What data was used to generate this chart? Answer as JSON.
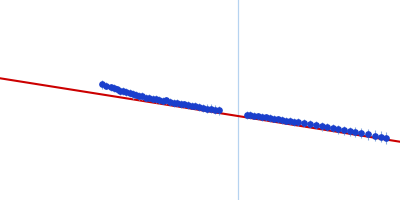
{
  "bg_color": "#ffffff",
  "line_color": "#cc0000",
  "dot_color": "#1a3fcc",
  "errorbar_color": "#88aadd",
  "vline_color": "#aaccee",
  "figsize": [
    4.0,
    2.0
  ],
  "dpi": 100,
  "xlim": [
    0.0,
    1.0
  ],
  "ylim": [
    0.0,
    1.0
  ],
  "line_x0": -0.02,
  "line_y0": 0.615,
  "line_x1": 1.02,
  "line_y1": 0.285,
  "vline_x": 0.595,
  "scatter_noise_seed": 42,
  "data_points": [
    [
      0.255,
      0.578,
      0.022
    ],
    [
      0.265,
      0.572,
      0.018
    ],
    [
      0.278,
      0.563,
      0.018
    ],
    [
      0.285,
      0.56,
      0.019
    ],
    [
      0.292,
      0.554,
      0.018
    ],
    [
      0.3,
      0.547,
      0.02
    ],
    [
      0.308,
      0.543,
      0.02
    ],
    [
      0.316,
      0.539,
      0.019
    ],
    [
      0.325,
      0.535,
      0.02
    ],
    [
      0.333,
      0.528,
      0.021
    ],
    [
      0.34,
      0.527,
      0.019
    ],
    [
      0.348,
      0.519,
      0.02
    ],
    [
      0.356,
      0.519,
      0.019
    ],
    [
      0.365,
      0.512,
      0.018
    ],
    [
      0.373,
      0.512,
      0.019
    ],
    [
      0.382,
      0.507,
      0.019
    ],
    [
      0.39,
      0.504,
      0.02
    ],
    [
      0.398,
      0.5,
      0.02
    ],
    [
      0.408,
      0.497,
      0.019
    ],
    [
      0.416,
      0.498,
      0.019
    ],
    [
      0.425,
      0.492,
      0.02
    ],
    [
      0.435,
      0.486,
      0.019
    ],
    [
      0.443,
      0.484,
      0.02
    ],
    [
      0.452,
      0.482,
      0.02
    ],
    [
      0.461,
      0.478,
      0.019
    ],
    [
      0.47,
      0.475,
      0.019
    ],
    [
      0.479,
      0.472,
      0.019
    ],
    [
      0.488,
      0.469,
      0.02
    ],
    [
      0.498,
      0.464,
      0.02
    ],
    [
      0.508,
      0.459,
      0.021
    ],
    [
      0.518,
      0.457,
      0.021
    ],
    [
      0.527,
      0.456,
      0.022
    ],
    [
      0.538,
      0.452,
      0.022
    ],
    [
      0.548,
      0.448,
      0.022
    ],
    [
      0.617,
      0.427,
      0.02
    ],
    [
      0.626,
      0.424,
      0.019
    ],
    [
      0.636,
      0.422,
      0.019
    ],
    [
      0.646,
      0.418,
      0.019
    ],
    [
      0.655,
      0.415,
      0.019
    ],
    [
      0.665,
      0.413,
      0.019
    ],
    [
      0.675,
      0.41,
      0.019
    ],
    [
      0.685,
      0.407,
      0.019
    ],
    [
      0.695,
      0.403,
      0.019
    ],
    [
      0.705,
      0.4,
      0.019
    ],
    [
      0.715,
      0.397,
      0.019
    ],
    [
      0.725,
      0.393,
      0.02
    ],
    [
      0.735,
      0.39,
      0.019
    ],
    [
      0.745,
      0.388,
      0.02
    ],
    [
      0.76,
      0.383,
      0.02
    ],
    [
      0.775,
      0.379,
      0.02
    ],
    [
      0.79,
      0.373,
      0.02
    ],
    [
      0.804,
      0.368,
      0.021
    ],
    [
      0.818,
      0.364,
      0.021
    ],
    [
      0.832,
      0.359,
      0.021
    ],
    [
      0.846,
      0.353,
      0.022
    ],
    [
      0.86,
      0.348,
      0.022
    ],
    [
      0.874,
      0.344,
      0.023
    ],
    [
      0.888,
      0.34,
      0.024
    ],
    [
      0.902,
      0.335,
      0.025
    ],
    [
      0.92,
      0.328,
      0.026
    ],
    [
      0.938,
      0.322,
      0.027
    ],
    [
      0.952,
      0.317,
      0.028
    ],
    [
      0.966,
      0.311,
      0.03
    ]
  ]
}
